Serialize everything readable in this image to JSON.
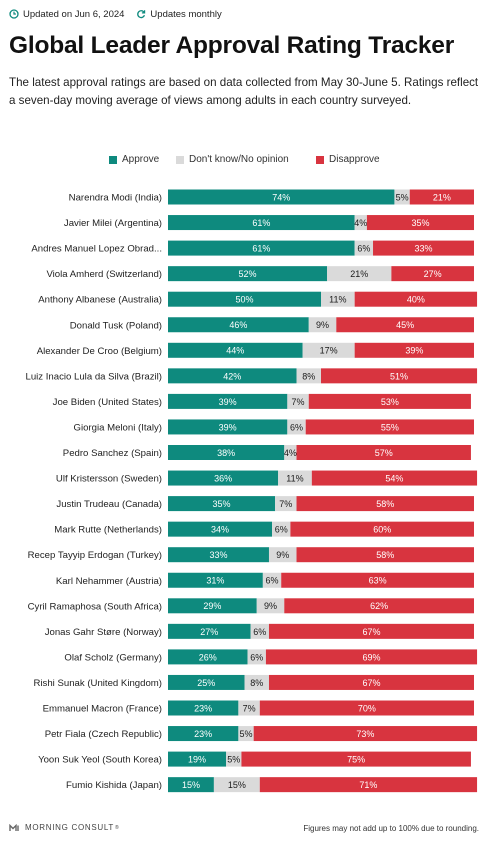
{
  "header": {
    "updated_label": "Updated on Jun 6, 2024",
    "frequency_label": "Updates monthly",
    "icons": [
      "clock-icon",
      "refresh-icon"
    ]
  },
  "title": "Global Leader Approval Rating Tracker",
  "subtitle": "The latest approval ratings are based on data collected from May 30-June 5. Ratings reflect a seven-day moving average of views among adults in each country surveyed.",
  "legend": {
    "approve": "Approve",
    "neutral": "Don't know/No opinion",
    "disapprove": "Disapprove"
  },
  "colors": {
    "approve": "#0e8a7e",
    "neutral": "#dadada",
    "disapprove": "#d8343f"
  },
  "chart_data": {
    "type": "bar",
    "stacked": true,
    "orientation": "horizontal",
    "xlim": [
      0,
      100
    ],
    "categories": [
      "Narendra Modi (India)",
      "Javier Milei (Argentina)",
      "Andres Manuel Lopez Obrad...",
      "Viola Amherd (Switzerland)",
      "Anthony Albanese (Australia)",
      "Donald Tusk (Poland)",
      "Alexander De Croo (Belgium)",
      "Luiz Inacio Lula da Silva (Brazil)",
      "Joe Biden (United States)",
      "Giorgia Meloni (Italy)",
      "Pedro Sanchez (Spain)",
      "Ulf Kristersson (Sweden)",
      "Justin Trudeau (Canada)",
      "Mark Rutte (Netherlands)",
      "Recep Tayyip Erdogan (Turkey)",
      "Karl Nehammer (Austria)",
      "Cyril Ramaphosa (South Africa)",
      "Jonas Gahr Støre (Norway)",
      "Olaf Scholz (Germany)",
      "Rishi Sunak (United Kingdom)",
      "Emmanuel Macron (France)",
      "Petr Fiala (Czech Republic)",
      "Yoon Suk Yeol (South Korea)",
      "Fumio Kishida (Japan)"
    ],
    "series": [
      {
        "name": "Approve",
        "values": [
          74,
          61,
          61,
          52,
          50,
          46,
          44,
          42,
          39,
          39,
          38,
          36,
          35,
          34,
          33,
          31,
          29,
          27,
          26,
          25,
          23,
          23,
          19,
          15
        ]
      },
      {
        "name": "Don't know/No opinion",
        "values": [
          5,
          4,
          6,
          21,
          11,
          9,
          17,
          8,
          7,
          6,
          4,
          11,
          7,
          6,
          9,
          6,
          9,
          6,
          6,
          8,
          7,
          5,
          5,
          15
        ]
      },
      {
        "name": "Disapprove",
        "values": [
          21,
          35,
          33,
          27,
          40,
          45,
          39,
          51,
          53,
          55,
          57,
          54,
          58,
          60,
          58,
          63,
          62,
          67,
          69,
          67,
          70,
          73,
          75,
          71
        ]
      }
    ],
    "value_suffix": "%"
  },
  "footer": {
    "brand": "MORNING CONSULT",
    "trademark": "®",
    "note": "Figures may not add up to 100% due to rounding."
  }
}
